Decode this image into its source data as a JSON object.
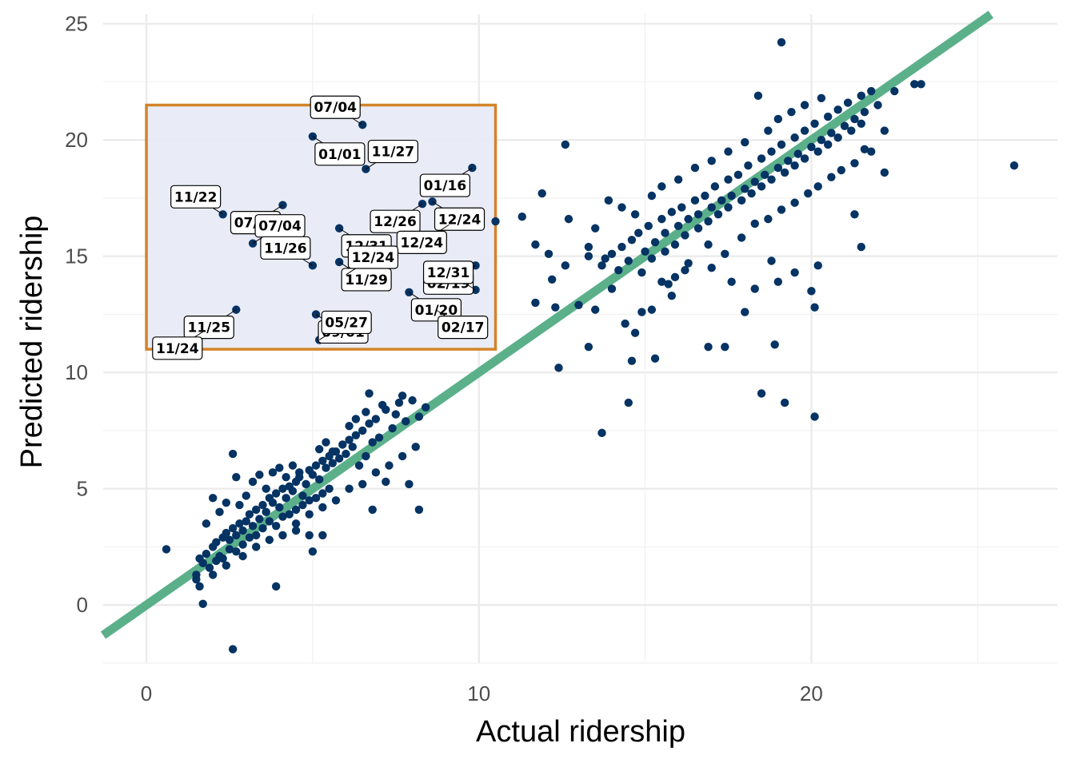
{
  "chart_data": {
    "type": "scatter",
    "xlabel": "Actual ridership",
    "ylabel": "Predicted ridership",
    "xlim": [
      -1.3,
      27.4
    ],
    "ylim": [
      -2.5,
      25.4
    ],
    "x_ticks": [
      0,
      10,
      20
    ],
    "y_ticks": [
      0,
      5,
      10,
      15,
      20,
      25
    ],
    "grid": true,
    "reference_line": {
      "slope": 1,
      "intercept": 0,
      "color": "#5BB08A"
    },
    "point_color": "#053363",
    "highlight_box": {
      "x": [
        0,
        10.5
      ],
      "y": [
        11.0,
        21.5
      ],
      "fill": "#E8EBF6",
      "stroke": "#D4832A"
    },
    "labeled_points": [
      {
        "label": "07/04",
        "x": 6.5,
        "y": 20.65
      },
      {
        "label": "01/01",
        "x": 5.0,
        "y": 20.15
      },
      {
        "label": "01/16",
        "x": 9.8,
        "y": 18.8
      },
      {
        "label": "11/27",
        "x": 6.6,
        "y": 18.75
      },
      {
        "label": "07/04",
        "x": 4.1,
        "y": 17.2
      },
      {
        "label": "12/24",
        "x": 8.6,
        "y": 17.35
      },
      {
        "label": "11/22",
        "x": 2.3,
        "y": 16.8
      },
      {
        "label": "12/31",
        "x": 5.8,
        "y": 16.2
      },
      {
        "label": "12/26",
        "x": 8.3,
        "y": 17.25
      },
      {
        "label": "07/04",
        "x": 3.2,
        "y": 15.55
      },
      {
        "label": "12/24",
        "x": 9.1,
        "y": 16.35
      },
      {
        "label": "11/29",
        "x": 5.8,
        "y": 14.75
      },
      {
        "label": "11/26",
        "x": 5.0,
        "y": 14.6
      },
      {
        "label": "01/20",
        "x": 7.9,
        "y": 13.45
      },
      {
        "label": "02/19",
        "x": 9.9,
        "y": 14.6
      },
      {
        "label": "12/24",
        "x": 6.0,
        "y": 14.2
      },
      {
        "label": "11/25",
        "x": 2.7,
        "y": 12.7
      },
      {
        "label": "09/01",
        "x": 5.1,
        "y": 12.5
      },
      {
        "label": "12/31",
        "x": 9.9,
        "y": 13.55
      },
      {
        "label": "02/17",
        "x": 8.7,
        "y": 12.7
      },
      {
        "label": "11/24",
        "x": 1.75,
        "y": 11.8
      },
      {
        "label": "05/27",
        "x": 5.2,
        "y": 11.4
      }
    ],
    "points": [
      [
        0.6,
        2.4
      ],
      [
        1.6,
        0.8
      ],
      [
        1.5,
        1.1
      ],
      [
        1.7,
        0.05
      ],
      [
        2.6,
        -1.9
      ],
      [
        3.9,
        0.8
      ],
      [
        1.6,
        2.0
      ],
      [
        1.8,
        2.2
      ],
      [
        2.0,
        2.5
      ],
      [
        2.1,
        2.7
      ],
      [
        2.2,
        2.1
      ],
      [
        2.3,
        2.9
      ],
      [
        2.4,
        3.1
      ],
      [
        2.5,
        2.8
      ],
      [
        2.6,
        3.3
      ],
      [
        2.7,
        3.0
      ],
      [
        2.8,
        3.5
      ],
      [
        2.9,
        3.2
      ],
      [
        3.0,
        3.6
      ],
      [
        3.1,
        3.9
      ],
      [
        3.2,
        3.4
      ],
      [
        3.3,
        4.1
      ],
      [
        3.4,
        3.7
      ],
      [
        3.5,
        4.3
      ],
      [
        3.6,
        4.0
      ],
      [
        3.7,
        4.6
      ],
      [
        3.8,
        4.4
      ],
      [
        3.9,
        4.8
      ],
      [
        4.0,
        4.2
      ],
      [
        4.1,
        5.0
      ],
      [
        4.2,
        4.6
      ],
      [
        4.3,
        5.1
      ],
      [
        4.4,
        4.9
      ],
      [
        4.5,
        5.3
      ],
      [
        4.6,
        5.5
      ],
      [
        4.7,
        4.7
      ],
      [
        4.8,
        5.2
      ],
      [
        4.9,
        5.8
      ],
      [
        5.0,
        5.6
      ],
      [
        5.1,
        6.0
      ],
      [
        5.2,
        5.4
      ],
      [
        5.3,
        6.2
      ],
      [
        5.4,
        5.9
      ],
      [
        5.5,
        6.4
      ],
      [
        5.6,
        6.1
      ],
      [
        5.7,
        6.6
      ],
      [
        5.8,
        6.3
      ],
      [
        5.9,
        6.9
      ],
      [
        6.0,
        6.5
      ],
      [
        6.1,
        7.1
      ],
      [
        6.2,
        6.8
      ],
      [
        6.3,
        7.3
      ],
      [
        6.4,
        6.0
      ],
      [
        6.5,
        7.5
      ],
      [
        6.6,
        6.4
      ],
      [
        6.7,
        7.8
      ],
      [
        6.8,
        7.0
      ],
      [
        6.9,
        8.0
      ],
      [
        7.0,
        7.2
      ],
      [
        7.2,
        8.4
      ],
      [
        7.4,
        7.6
      ],
      [
        7.6,
        8.7
      ],
      [
        7.8,
        7.9
      ],
      [
        8.0,
        8.8
      ],
      [
        8.2,
        8.1
      ],
      [
        8.4,
        8.5
      ],
      [
        2.6,
        6.5
      ],
      [
        2.7,
        5.5
      ],
      [
        3.4,
        5.6
      ],
      [
        4.0,
        5.9
      ],
      [
        4.5,
        3.2
      ],
      [
        4.9,
        3.0
      ],
      [
        5.0,
        2.3
      ],
      [
        5.3,
        3.0
      ],
      [
        6.7,
        9.1
      ],
      [
        7.5,
        8.2
      ],
      [
        7.9,
        5.2
      ],
      [
        8.2,
        4.1
      ],
      [
        6.8,
        4.1
      ],
      [
        7.2,
        5.3
      ],
      [
        1.5,
        1.3
      ],
      [
        1.9,
        1.6
      ],
      [
        2.1,
        1.9
      ],
      [
        2.3,
        2.0
      ],
      [
        2.5,
        2.4
      ],
      [
        2.7,
        2.3
      ],
      [
        2.9,
        2.6
      ],
      [
        3.1,
        2.9
      ],
      [
        3.3,
        3.0
      ],
      [
        3.5,
        3.3
      ],
      [
        3.7,
        3.6
      ],
      [
        3.9,
        3.4
      ],
      [
        4.1,
        3.8
      ],
      [
        4.3,
        3.9
      ],
      [
        4.5,
        4.1
      ],
      [
        4.7,
        4.3
      ],
      [
        4.9,
        4.5
      ],
      [
        5.1,
        4.6
      ],
      [
        5.3,
        4.8
      ],
      [
        5.5,
        5.0
      ],
      [
        1.8,
        3.5
      ],
      [
        2.0,
        4.6
      ],
      [
        2.2,
        4.0
      ],
      [
        2.4,
        4.4
      ],
      [
        2.8,
        4.3
      ],
      [
        3.0,
        4.7
      ],
      [
        3.2,
        5.3
      ],
      [
        3.6,
        5.0
      ],
      [
        3.8,
        5.7
      ],
      [
        4.2,
        5.5
      ],
      [
        4.4,
        6.0
      ],
      [
        4.6,
        5.7
      ],
      [
        5.2,
        6.7
      ],
      [
        5.4,
        7.0
      ],
      [
        5.6,
        6.6
      ],
      [
        6.1,
        7.7
      ],
      [
        6.3,
        8.0
      ],
      [
        6.6,
        8.3
      ],
      [
        7.1,
        8.6
      ],
      [
        7.7,
        9.0
      ],
      [
        1.7,
        1.8
      ],
      [
        2.0,
        1.3
      ],
      [
        2.4,
        1.7
      ],
      [
        2.9,
        2.1
      ],
      [
        3.3,
        2.5
      ],
      [
        3.7,
        2.8
      ],
      [
        4.1,
        3.0
      ],
      [
        4.5,
        3.5
      ],
      [
        4.9,
        3.9
      ],
      [
        5.3,
        4.2
      ],
      [
        5.7,
        4.5
      ],
      [
        6.1,
        5.0
      ],
      [
        6.5,
        5.2
      ],
      [
        6.9,
        5.7
      ],
      [
        7.3,
        6.0
      ],
      [
        7.7,
        6.4
      ],
      [
        8.1,
        6.8
      ],
      [
        10.5,
        16.5
      ],
      [
        11.3,
        16.7
      ],
      [
        11.9,
        17.7
      ],
      [
        12.6,
        19.8
      ],
      [
        12.7,
        16.6
      ],
      [
        12.1,
        15.1
      ],
      [
        11.7,
        15.5
      ],
      [
        12.6,
        14.6
      ],
      [
        13.3,
        15.0
      ],
      [
        13.8,
        14.9
      ],
      [
        12.2,
        14.0
      ],
      [
        11.7,
        13.0
      ],
      [
        12.3,
        12.8
      ],
      [
        13.5,
        12.7
      ],
      [
        14.0,
        13.6
      ],
      [
        12.4,
        10.2
      ],
      [
        13.3,
        11.1
      ],
      [
        13.7,
        7.4
      ],
      [
        14.5,
        8.7
      ],
      [
        14.6,
        10.5
      ],
      [
        15.3,
        10.6
      ],
      [
        15.8,
        13.3
      ],
      [
        16.9,
        11.1
      ],
      [
        17.4,
        11.1
      ],
      [
        18.5,
        9.1
      ],
      [
        19.2,
        8.7
      ],
      [
        19.1,
        24.2
      ],
      [
        20.1,
        8.1
      ],
      [
        26.1,
        18.9
      ],
      [
        18.0,
        12.6
      ],
      [
        18.9,
        11.2
      ],
      [
        19.0,
        13.9
      ],
      [
        19.5,
        14.3
      ],
      [
        20.0,
        13.5
      ],
      [
        20.1,
        12.8
      ],
      [
        20.2,
        14.6
      ],
      [
        21.3,
        16.8
      ],
      [
        21.5,
        15.4
      ],
      [
        22.2,
        18.6
      ],
      [
        23.1,
        22.4
      ],
      [
        23.3,
        22.4
      ],
      [
        13.7,
        14.6
      ],
      [
        13.0,
        12.9
      ],
      [
        14.4,
        12.1
      ],
      [
        14.7,
        11.7
      ],
      [
        14.9,
        12.6
      ],
      [
        15.2,
        12.7
      ],
      [
        15.5,
        13.9
      ],
      [
        15.9,
        14.1
      ],
      [
        16.2,
        14.4
      ],
      [
        14.0,
        15.1
      ],
      [
        14.3,
        15.4
      ],
      [
        14.6,
        15.7
      ],
      [
        14.8,
        16.0
      ],
      [
        15.0,
        15.2
      ],
      [
        15.1,
        16.3
      ],
      [
        15.3,
        15.6
      ],
      [
        15.5,
        16.6
      ],
      [
        15.6,
        16.0
      ],
      [
        15.8,
        16.9
      ],
      [
        16.0,
        16.3
      ],
      [
        16.1,
        17.1
      ],
      [
        16.3,
        16.6
      ],
      [
        16.5,
        17.4
      ],
      [
        16.6,
        16.8
      ],
      [
        16.8,
        17.6
      ],
      [
        17.0,
        17.1
      ],
      [
        17.1,
        18.0
      ],
      [
        17.3,
        17.4
      ],
      [
        17.5,
        18.3
      ],
      [
        17.6,
        17.6
      ],
      [
        17.8,
        18.5
      ],
      [
        18.0,
        17.9
      ],
      [
        18.1,
        18.9
      ],
      [
        18.3,
        18.2
      ],
      [
        18.5,
        19.2
      ],
      [
        18.6,
        18.5
      ],
      [
        18.8,
        19.5
      ],
      [
        19.0,
        18.8
      ],
      [
        19.1,
        19.8
      ],
      [
        19.3,
        19.1
      ],
      [
        19.5,
        20.1
      ],
      [
        19.6,
        19.4
      ],
      [
        19.8,
        20.4
      ],
      [
        20.0,
        19.7
      ],
      [
        20.1,
        20.7
      ],
      [
        20.3,
        20.0
      ],
      [
        20.5,
        21.0
      ],
      [
        20.6,
        20.3
      ],
      [
        20.8,
        21.3
      ],
      [
        21.0,
        20.6
      ],
      [
        21.1,
        21.6
      ],
      [
        21.3,
        20.9
      ],
      [
        21.5,
        21.9
      ],
      [
        21.6,
        21.2
      ],
      [
        21.8,
        22.1
      ],
      [
        22.0,
        21.5
      ],
      [
        22.2,
        20.4
      ],
      [
        22.5,
        22.1
      ],
      [
        21.8,
        19.5
      ],
      [
        14.2,
        14.4
      ],
      [
        14.5,
        14.8
      ],
      [
        14.9,
        14.3
      ],
      [
        15.2,
        14.9
      ],
      [
        15.6,
        15.2
      ],
      [
        15.9,
        15.5
      ],
      [
        16.2,
        15.9
      ],
      [
        16.6,
        16.2
      ],
      [
        16.9,
        16.5
      ],
      [
        17.2,
        16.8
      ],
      [
        17.5,
        17.1
      ],
      [
        17.9,
        17.4
      ],
      [
        18.2,
        17.7
      ],
      [
        18.5,
        18.0
      ],
      [
        18.8,
        18.3
      ],
      [
        19.2,
        18.6
      ],
      [
        19.5,
        18.9
      ],
      [
        19.8,
        19.2
      ],
      [
        20.2,
        19.5
      ],
      [
        20.5,
        19.8
      ],
      [
        20.8,
        20.1
      ],
      [
        21.2,
        20.4
      ],
      [
        21.5,
        20.7
      ],
      [
        16.0,
        18.3
      ],
      [
        16.5,
        18.8
      ],
      [
        17.0,
        19.1
      ],
      [
        17.5,
        19.5
      ],
      [
        18.0,
        19.9
      ],
      [
        18.4,
        21.9
      ],
      [
        18.7,
        20.4
      ],
      [
        19.0,
        20.9
      ],
      [
        19.4,
        21.2
      ],
      [
        19.8,
        21.5
      ],
      [
        20.3,
        21.8
      ],
      [
        16.9,
        15.5
      ],
      [
        17.4,
        15.1
      ],
      [
        17.9,
        15.8
      ],
      [
        18.3,
        16.4
      ],
      [
        18.7,
        16.6
      ],
      [
        19.1,
        17.0
      ],
      [
        19.5,
        17.3
      ],
      [
        19.9,
        17.7
      ],
      [
        20.2,
        18.0
      ],
      [
        20.6,
        18.4
      ],
      [
        20.9,
        18.7
      ],
      [
        21.3,
        19.0
      ],
      [
        21.6,
        19.6
      ],
      [
        15.2,
        17.6
      ],
      [
        15.5,
        18.0
      ],
      [
        14.7,
        16.8
      ],
      [
        14.3,
        17.1
      ],
      [
        13.9,
        17.4
      ],
      [
        13.5,
        16.2
      ],
      [
        13.3,
        15.4
      ],
      [
        15.7,
        13.8
      ],
      [
        16.3,
        14.7
      ],
      [
        17.0,
        14.5
      ],
      [
        17.6,
        13.9
      ],
      [
        18.3,
        13.6
      ],
      [
        18.8,
        14.8
      ]
    ]
  }
}
